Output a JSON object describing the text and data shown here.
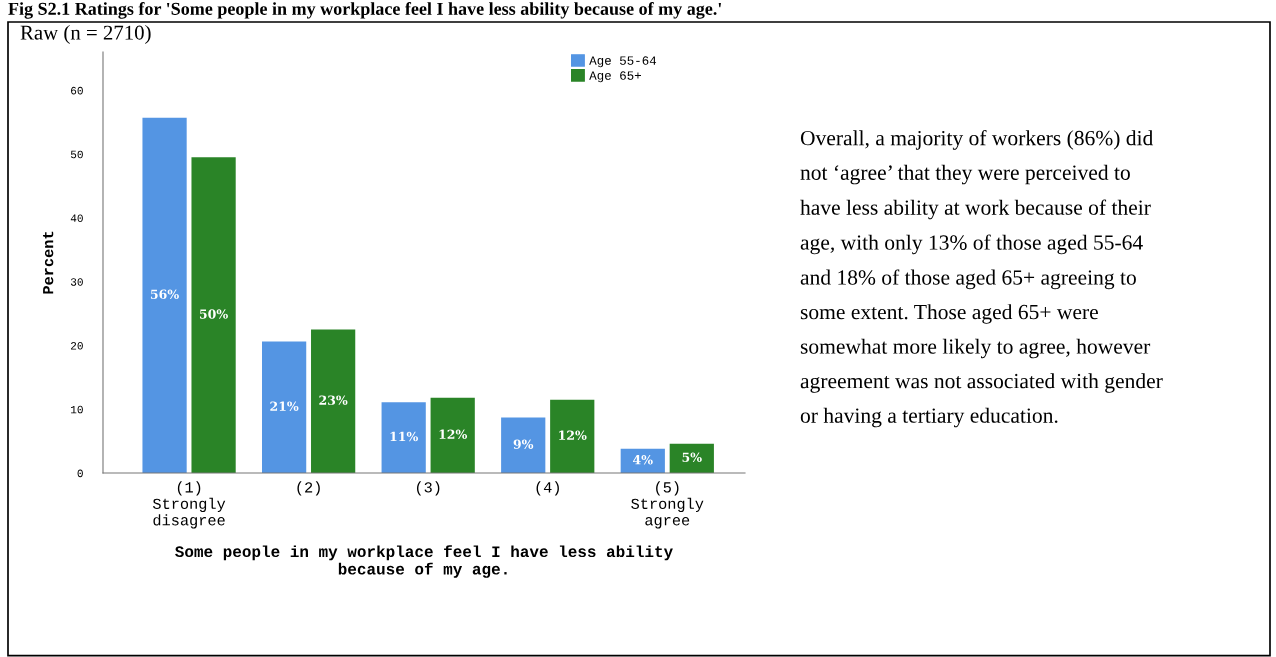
{
  "chart_data": {
    "type": "bar",
    "title": "Fig S2.1 Ratings for 'Some people in my workplace feel I have less ability because of my age.'",
    "subtitle": "Raw (n = 2710)",
    "xlabel": "Some people in my workplace feel I have less ability\nbecause of my age.",
    "ylabel": "Percent",
    "categories": [
      "(1)\nStrongly\ndisagree",
      "(2)",
      "(3)",
      "(4)",
      "(5)\nStrongly\nagree"
    ],
    "series": [
      {
        "name": "Age 55-64",
        "color": "#5495e3",
        "values": [
          55.7,
          20.6,
          11.1,
          8.7,
          3.8
        ],
        "value_labels": [
          "56%",
          "21%",
          "11%",
          "9%",
          "4%"
        ]
      },
      {
        "name": "Age 65+",
        "color": "#2a8427",
        "values": [
          49.5,
          22.5,
          11.8,
          11.5,
          4.6
        ],
        "value_labels": [
          "50%",
          "23%",
          "12%",
          "12%",
          "5%"
        ]
      }
    ],
    "ylim": [
      0,
      66
    ],
    "yticks": [
      0,
      10,
      20,
      30,
      40,
      50,
      60
    ],
    "grid": false,
    "legend": "top right",
    "annotations": [
      "Overall, a majority of workers (86%) did\nnot ‘agree’ that they were perceived to\nhave less ability at work because of their\nage, with only 13% of those aged 55-64\nand 18% of those aged 65+ agreeing to\nsome extent. Those aged 65+ were\nsomewhat more likely to agree, however\nagreement was not associated with gender\nor having a tertiary education."
    ]
  }
}
